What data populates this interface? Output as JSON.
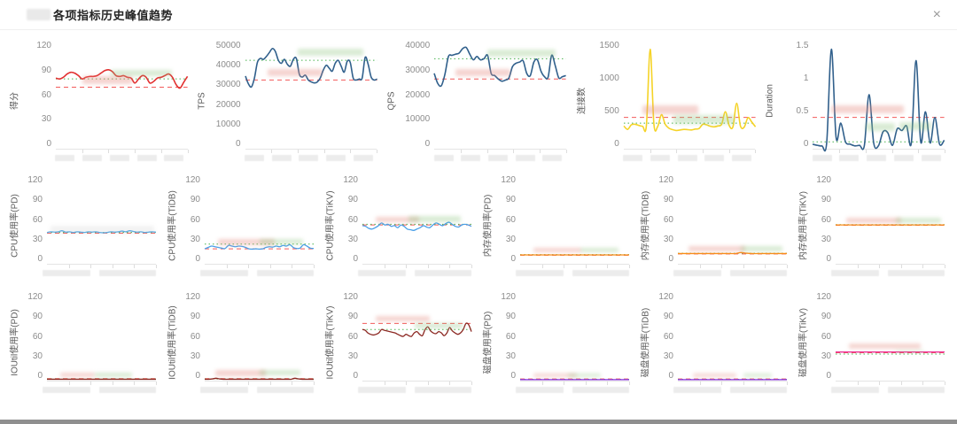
{
  "modal": {
    "title": "各项指标历史峰值趋势",
    "close_label": "×"
  },
  "ref_colors": {
    "average_green": "#49b34f",
    "threshold_red": "#f25a5a"
  },
  "chart_data": [
    {
      "type": "line",
      "row": 1,
      "ylabel": "得分",
      "color": "#e23030",
      "ylim": [
        0,
        130
      ],
      "yticks": [
        "0",
        "30",
        "60",
        "90",
        "120"
      ],
      "ref_green": 84,
      "ref_red": 74,
      "values": [
        85,
        84,
        86,
        90,
        92,
        91,
        88,
        84,
        86,
        87,
        87,
        88,
        91,
        94,
        95,
        93,
        88,
        87,
        88,
        86,
        85,
        79,
        84,
        88,
        86,
        79,
        81,
        85,
        86,
        88,
        90,
        86,
        77,
        73,
        80,
        87
      ],
      "masks": [
        {
          "x": 0.2,
          "y": 0.33,
          "w": 0.38,
          "h": 0.07,
          "tone": "pink"
        },
        {
          "x": 0.42,
          "y": 0.27,
          "w": 0.46,
          "h": 0.06,
          "tone": "green"
        }
      ]
    },
    {
      "type": "line",
      "row": 1,
      "ylabel": "TPS",
      "color": "#31608c",
      "ylim": [
        0,
        55000
      ],
      "yticks": [
        "0",
        "10000",
        "20000",
        "30000",
        "40000",
        "50000"
      ],
      "ref_green": 45000,
      "ref_red": 35000,
      "values": [
        37000,
        33000,
        31500,
        36000,
        44000,
        46000,
        45500,
        47000,
        49000,
        51000,
        49500,
        45000,
        43500,
        45500,
        43000,
        42000,
        45500,
        46000,
        38000,
        36500,
        37500,
        35000,
        34000,
        33500,
        34000,
        36000,
        40000,
        42500,
        41000,
        39500,
        43500,
        45000,
        42000,
        39000,
        44500,
        44000,
        36000,
        35000,
        35500,
        36000,
        46500,
        43000,
        36500,
        35000,
        35500
      ],
      "masks": [
        {
          "x": 0.4,
          "y": 0.07,
          "w": 0.5,
          "h": 0.07,
          "tone": "green"
        },
        {
          "x": 0.17,
          "y": 0.26,
          "w": 0.42,
          "h": 0.07,
          "tone": "pink"
        }
      ]
    },
    {
      "type": "line",
      "row": 1,
      "ylabel": "QPS",
      "color": "#31608c",
      "ylim": [
        0,
        48000
      ],
      "yticks": [
        "0",
        "10000",
        "20000",
        "30000",
        "40000"
      ],
      "ref_green": 40000,
      "ref_red": 31000,
      "values": [
        33500,
        29000,
        28000,
        33000,
        41000,
        41500,
        42000,
        42500,
        44500,
        45000,
        42000,
        39500,
        41000,
        39500,
        40000,
        41500,
        33500,
        32500,
        31000,
        30000,
        30500,
        31500,
        36500,
        38000,
        38500,
        39000,
        33500,
        32500,
        38500,
        39500,
        34500,
        32000,
        31800,
        41500,
        37000,
        31500,
        32000,
        32500
      ],
      "masks": [
        {
          "x": 0.4,
          "y": 0.08,
          "w": 0.52,
          "h": 0.07,
          "tone": "green"
        },
        {
          "x": 0.16,
          "y": 0.26,
          "w": 0.42,
          "h": 0.07,
          "tone": "pink"
        }
      ]
    },
    {
      "type": "line",
      "row": 1,
      "ylabel": "连接数",
      "color": "#f5d327",
      "ylim": [
        0,
        1900
      ],
      "yticks": [
        "0",
        "500",
        "1000",
        "1500"
      ],
      "ref_green": 450,
      "ref_red": 550,
      "values": [
        400,
        340,
        420,
        430,
        410,
        395,
        405,
        1750,
        430,
        390,
        600,
        430,
        360,
        335,
        320,
        330,
        340,
        335,
        330,
        345,
        355,
        430,
        420,
        395,
        385,
        400,
        430,
        650,
        410,
        385,
        800,
        400,
        380,
        545,
        470,
        385
      ],
      "masks": [
        {
          "x": 0.14,
          "y": 0.6,
          "w": 0.43,
          "h": 0.08,
          "tone": "pink"
        },
        {
          "x": 0.38,
          "y": 0.69,
          "w": 0.46,
          "h": 0.08,
          "tone": "green"
        }
      ]
    },
    {
      "type": "line",
      "row": 1,
      "ylabel": "Duration",
      "color": "#31608c",
      "ylim": [
        0,
        1.9
      ],
      "yticks": [
        "0",
        "0.5",
        "1",
        "1.5"
      ],
      "ref_green": 0.12,
      "ref_red": 0.55,
      "values": [
        0.08,
        0.06,
        0.05,
        0.1,
        1.75,
        0.2,
        0.45,
        0.12,
        0.08,
        0.05,
        0.06,
        0.05,
        0.95,
        0.1,
        0.05,
        0.3,
        0.28,
        0.06,
        0.35,
        0.32,
        0.4,
        0.1,
        1.55,
        0.12,
        0.65,
        0.1,
        0.55,
        0.08,
        0.15
      ],
      "masks": [
        {
          "x": 0.14,
          "y": 0.6,
          "w": 0.55,
          "h": 0.07,
          "tone": "pink"
        },
        {
          "x": 0.4,
          "y": 0.76,
          "w": 0.22,
          "h": 0.08,
          "tone": "green"
        },
        {
          "x": 0.66,
          "y": 0.75,
          "w": 0.24,
          "h": 0.08,
          "tone": "green"
        }
      ]
    },
    {
      "type": "line",
      "row": 2,
      "ylabel": "CPU使用率(PD)",
      "color": "#5fb0ea",
      "ylim": [
        0,
        130
      ],
      "yticks": [
        "0",
        "30",
        "60",
        "90",
        "120"
      ],
      "ref_green": 46,
      "ref_red": 45,
      "values": [
        46,
        47,
        46.5,
        47,
        48.5,
        46.5,
        47,
        46,
        47,
        46.5,
        46,
        47,
        46.5,
        47,
        46,
        45.5,
        46,
        47,
        46.5,
        47,
        48,
        47,
        48.5,
        47.5,
        46.5,
        47,
        46,
        46.5,
        47,
        46.5
      ],
      "masks": [
        {
          "x": 0.03,
          "y": 0.57,
          "w": 0.95,
          "h": 0.09,
          "tone": "gray"
        }
      ]
    },
    {
      "type": "line",
      "row": 2,
      "ylabel": "CPU使用率(TiDB)",
      "color": "#4a9fe8",
      "ylim": [
        0,
        130
      ],
      "yticks": [
        "0",
        "30",
        "60",
        "90",
        "120"
      ],
      "ref_green": 29,
      "ref_red": 22,
      "values": [
        22,
        24,
        26,
        25,
        24,
        23,
        22.5,
        27,
        26,
        25,
        26,
        25.5,
        24,
        22,
        21.5,
        22,
        21.5,
        22,
        24,
        25,
        24.5,
        26,
        25,
        27,
        26,
        28,
        24,
        22.5,
        23,
        28,
        26,
        23,
        22.5
      ],
      "masks": [
        {
          "x": 0.12,
          "y": 0.72,
          "w": 0.52,
          "h": 0.07,
          "tone": "pink"
        },
        {
          "x": 0.5,
          "y": 0.72,
          "w": 0.4,
          "h": 0.06,
          "tone": "green"
        }
      ]
    },
    {
      "type": "line",
      "row": 2,
      "ylabel": "CPU使用率(TiKV)",
      "color": "#4a9fe8",
      "ylim": [
        0,
        130
      ],
      "yticks": [
        "0",
        "30",
        "60",
        "90",
        "120"
      ],
      "ref_green": 58,
      "ref_red": 57,
      "values": [
        56,
        55,
        52,
        51,
        53,
        56,
        60,
        57,
        58,
        55,
        56,
        53,
        57,
        55,
        51,
        50,
        49,
        51,
        53,
        56,
        54,
        53,
        57,
        60,
        58,
        56,
        59,
        61,
        58,
        55,
        54,
        57,
        58,
        57,
        55
      ],
      "masks": [
        {
          "x": 0.12,
          "y": 0.47,
          "w": 0.4,
          "h": 0.06,
          "tone": "pink"
        },
        {
          "x": 0.42,
          "y": 0.46,
          "w": 0.48,
          "h": 0.07,
          "tone": "green"
        }
      ]
    },
    {
      "type": "line",
      "row": 2,
      "ylabel": "内存使用率(PD)",
      "color": "#fa8c16",
      "ylim": [
        0,
        130
      ],
      "yticks": [
        "0",
        "30",
        "60",
        "90",
        "120"
      ],
      "ref_green": 13.5,
      "ref_red": 12.5,
      "values": [
        13,
        13,
        13,
        13,
        13,
        13,
        13,
        13,
        13,
        13,
        13,
        13,
        13,
        13,
        13,
        13,
        13,
        13,
        13,
        13
      ],
      "masks": [
        {
          "x": 0.12,
          "y": 0.82,
          "w": 0.44,
          "h": 0.05,
          "tone": "pink"
        },
        {
          "x": 0.55,
          "y": 0.82,
          "w": 0.35,
          "h": 0.05,
          "tone": "green"
        }
      ]
    },
    {
      "type": "line",
      "row": 2,
      "ylabel": "内存使用率(TiDB)",
      "color": "#fa8c16",
      "ylim": [
        0,
        130
      ],
      "yticks": [
        "0",
        "30",
        "60",
        "90",
        "120"
      ],
      "ref_green": 15.5,
      "ref_red": 14.5,
      "values": [
        15,
        15,
        15,
        15,
        15,
        15,
        15,
        15,
        15,
        15,
        15,
        16.5,
        15.5,
        15,
        15,
        15,
        15,
        15,
        15,
        15
      ],
      "masks": [
        {
          "x": 0.1,
          "y": 0.8,
          "w": 0.52,
          "h": 0.06,
          "tone": "pink"
        },
        {
          "x": 0.58,
          "y": 0.8,
          "w": 0.38,
          "h": 0.06,
          "tone": "green"
        }
      ]
    },
    {
      "type": "line",
      "row": 2,
      "ylabel": "内存使用率(TiKV)",
      "color": "#fa8c16",
      "ylim": [
        0,
        130
      ],
      "yticks": [
        "0",
        "30",
        "60",
        "90",
        "120"
      ],
      "ref_green": 57.5,
      "ref_red": 56.5,
      "values": [
        57,
        57,
        57,
        57,
        57,
        57,
        57,
        57,
        57,
        57,
        57,
        57,
        57,
        57,
        57,
        57,
        57,
        57,
        57,
        57
      ],
      "masks": [
        {
          "x": 0.1,
          "y": 0.48,
          "w": 0.5,
          "h": 0.06,
          "tone": "pink"
        },
        {
          "x": 0.55,
          "y": 0.48,
          "w": 0.42,
          "h": 0.06,
          "tone": "green"
        }
      ]
    },
    {
      "type": "line",
      "row": 3,
      "ylabel": "IOUtil使用率(PD)",
      "color": "#8c2822",
      "ylim": [
        0,
        130
      ],
      "yticks": [
        "0",
        "30",
        "60",
        "90",
        "120"
      ],
      "ref_green": 2.5,
      "ref_red": 3,
      "values": [
        2,
        2,
        2,
        2,
        2,
        2,
        2,
        2,
        2,
        2,
        2,
        2,
        2,
        2,
        2,
        2,
        2,
        2,
        2,
        2
      ],
      "masks": [
        {
          "x": 0.12,
          "y": 0.91,
          "w": 0.32,
          "h": 0.045,
          "tone": "pink"
        },
        {
          "x": 0.44,
          "y": 0.91,
          "w": 0.34,
          "h": 0.045,
          "tone": "green"
        }
      ]
    },
    {
      "type": "line",
      "row": 3,
      "ylabel": "IOUtil使用率(TiDB)",
      "color": "#8c2822",
      "ylim": [
        0,
        130
      ],
      "yticks": [
        "0",
        "30",
        "60",
        "90",
        "120"
      ],
      "ref_green": 2.5,
      "ref_red": 3,
      "values": [
        2,
        2,
        2.5,
        3.5,
        2.5,
        2,
        2,
        2,
        2,
        2,
        2,
        2,
        2,
        2,
        2,
        2,
        2,
        2,
        2,
        2,
        2,
        2,
        2,
        2,
        3.5,
        2.5,
        2,
        2,
        2,
        2
      ],
      "masks": [
        {
          "x": 0.1,
          "y": 0.88,
          "w": 0.46,
          "h": 0.07,
          "tone": "pink"
        },
        {
          "x": 0.5,
          "y": 0.88,
          "w": 0.38,
          "h": 0.06,
          "tone": "green"
        }
      ]
    },
    {
      "type": "line",
      "row": 3,
      "ylabel": "IOUtil使用率(TiKV)",
      "color": "#8c2822",
      "ylim": [
        0,
        130
      ],
      "yticks": [
        "0",
        "30",
        "60",
        "90",
        "120"
      ],
      "ref_green": 75,
      "ref_red": 84,
      "values": [
        75,
        74,
        70,
        68,
        67,
        68,
        70,
        75,
        74,
        73,
        72,
        71,
        70,
        68,
        66,
        65,
        68,
        66,
        65,
        70,
        72,
        68,
        66,
        75,
        79,
        73,
        70,
        69,
        72,
        70,
        66,
        70,
        78,
        73,
        70,
        68,
        70,
        75,
        84,
        82,
        72
      ],
      "masks": [
        {
          "x": 0.12,
          "y": 0.27,
          "w": 0.5,
          "h": 0.06,
          "tone": "pink"
        },
        {
          "x": 0.48,
          "y": 0.35,
          "w": 0.44,
          "h": 0.06,
          "tone": "green"
        }
      ]
    },
    {
      "type": "line",
      "row": 3,
      "ylabel": "磁盘使用率(PD)",
      "color": "#8a2be2",
      "ylim": [
        0,
        130
      ],
      "yticks": [
        "0",
        "30",
        "60",
        "90",
        "120"
      ],
      "ref_green": 2,
      "ref_red": 2.5,
      "values": [
        1.5,
        1.5,
        1.5,
        1.5,
        1.5,
        1.5,
        1.5,
        1.5,
        1.5,
        1.5,
        1.5,
        1.5,
        1.5,
        1.5,
        1.5,
        1.5,
        1.5,
        1.5,
        1.5,
        1.5
      ],
      "masks": [
        {
          "x": 0.12,
          "y": 0.92,
          "w": 0.4,
          "h": 0.04,
          "tone": "pink"
        },
        {
          "x": 0.44,
          "y": 0.92,
          "w": 0.3,
          "h": 0.04,
          "tone": "green"
        }
      ]
    },
    {
      "type": "line",
      "row": 3,
      "ylabel": "磁盘使用率(TiDB)",
      "color": "#8a2be2",
      "ylim": [
        0,
        130
      ],
      "yticks": [
        "0",
        "30",
        "60",
        "90",
        "120"
      ],
      "ref_green": 2,
      "ref_red": 2.5,
      "values": [
        1.5,
        1.5,
        1.5,
        1.5,
        1.5,
        1.5,
        1.5,
        1.5,
        1.5,
        1.5,
        1.5,
        1.5,
        1.5,
        1.5,
        1.5,
        1.5,
        1.5,
        1.5,
        1.5,
        1.5
      ],
      "masks": [
        {
          "x": 0.14,
          "y": 0.92,
          "w": 0.4,
          "h": 0.04,
          "tone": "pink"
        },
        {
          "x": 0.6,
          "y": 0.92,
          "w": 0.26,
          "h": 0.04,
          "tone": "green"
        }
      ]
    },
    {
      "type": "line",
      "row": 3,
      "ylabel": "磁盘使用率(TiKV)",
      "color": "#eb2f96",
      "ylim": [
        0,
        130
      ],
      "yticks": [
        "0",
        "30",
        "60",
        "90",
        "120"
      ],
      "ref_green": 39,
      "ref_red": 41,
      "values": [
        42,
        42,
        42,
        42,
        42,
        42,
        42,
        42,
        42,
        42,
        42,
        42,
        42,
        42,
        42,
        42,
        42,
        42,
        42,
        42
      ],
      "masks": [
        {
          "x": 0.12,
          "y": 0.58,
          "w": 0.66,
          "h": 0.06,
          "tone": "pink"
        },
        {
          "x": 0.55,
          "y": 0.655,
          "w": 0.26,
          "h": 0.025,
          "tone": "green"
        }
      ]
    }
  ]
}
